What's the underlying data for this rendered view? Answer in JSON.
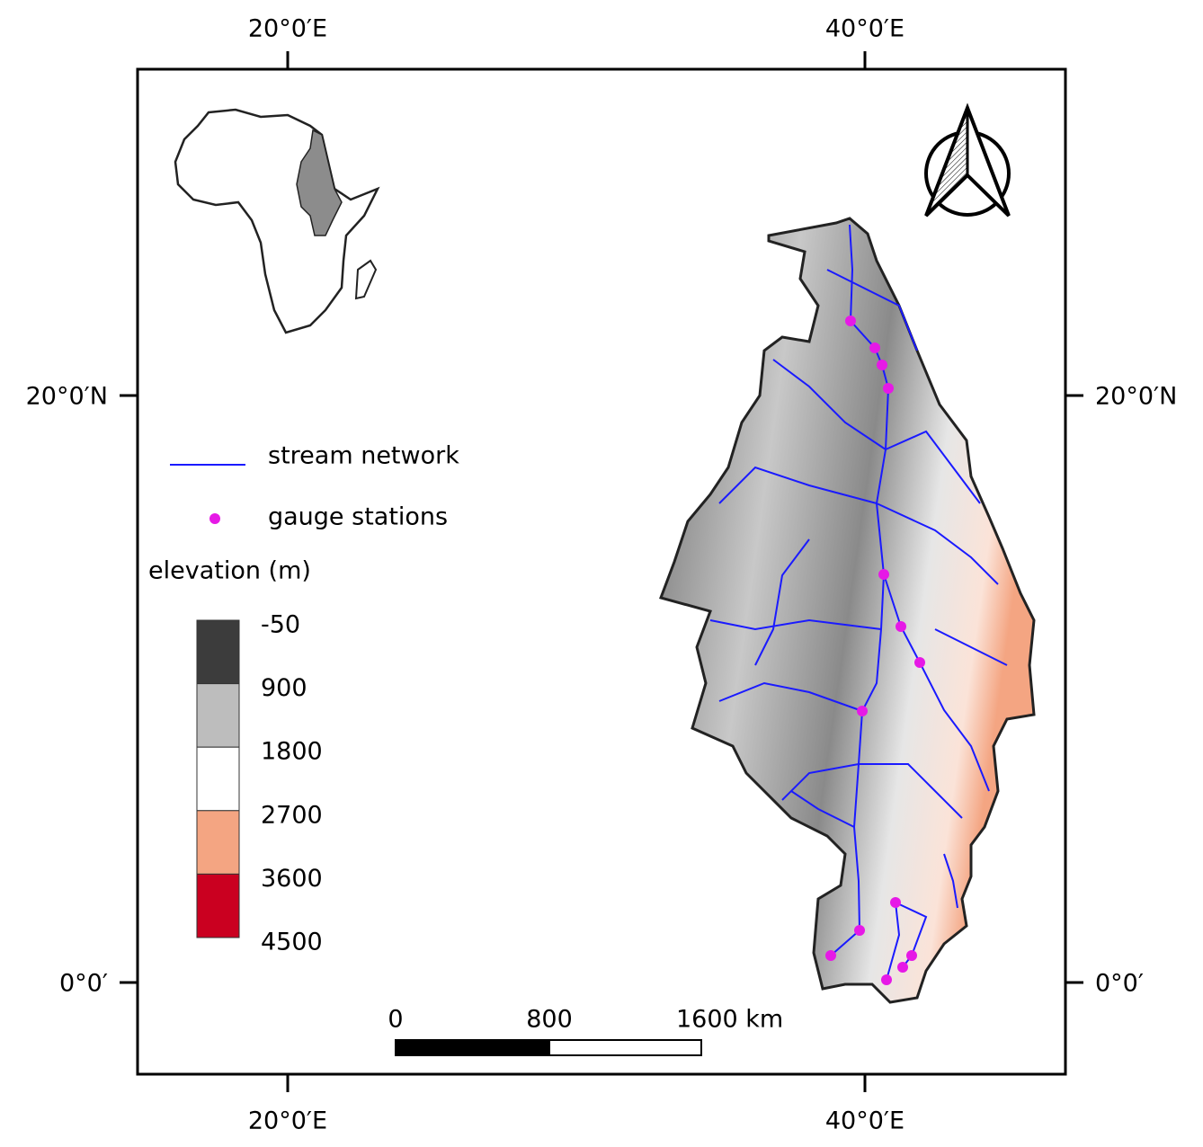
{
  "map": {
    "lon_labels": [
      "20°0′E",
      "40°0′E"
    ],
    "lat_labels": [
      "20°0′N",
      "0°0′"
    ],
    "legend": {
      "stream": "stream network",
      "gauge": "gauge stations",
      "elevation_title": "elevation (m)",
      "elevation_breaks": [
        -50,
        900,
        1800,
        2700,
        3600,
        4500
      ],
      "elevation_colors": [
        "#3c3c3c",
        "#bdbdbd",
        "#ffffff",
        "#f4a582",
        "#ca0020"
      ]
    },
    "scale_bar": {
      "labels": [
        "0",
        "800",
        "1600 km"
      ]
    }
  }
}
